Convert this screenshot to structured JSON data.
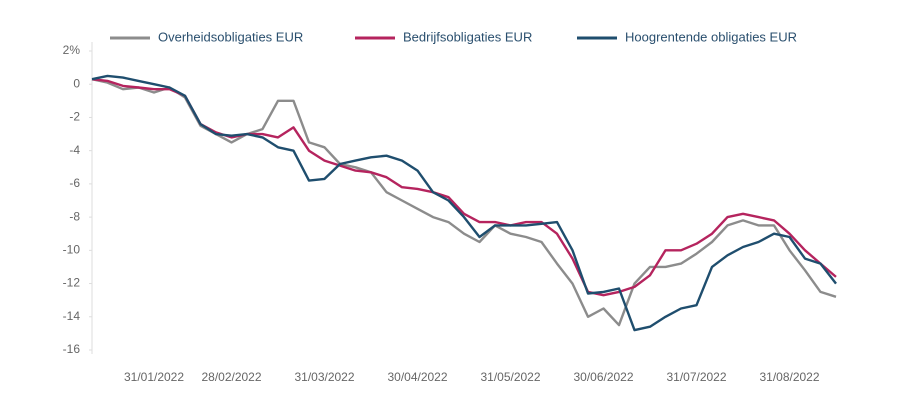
{
  "chart_data": {
    "type": "line",
    "categories": [
      null,
      null,
      null,
      null,
      "31/01/2022",
      null,
      null,
      null,
      null,
      "28/02/2022",
      null,
      null,
      null,
      null,
      null,
      "31/03/2022",
      null,
      null,
      null,
      null,
      null,
      "30/04/2022",
      null,
      null,
      null,
      null,
      null,
      "31/05/2022",
      null,
      null,
      null,
      null,
      null,
      "30/06/2022",
      null,
      null,
      null,
      null,
      null,
      "31/07/2022",
      null,
      null,
      null,
      null,
      null,
      "31/08/2022",
      null,
      null,
      null
    ],
    "series": [
      {
        "name": "Overheidsobligaties EUR",
        "color": "#8c8c8c",
        "values": [
          0.3,
          0.1,
          -0.3,
          -0.2,
          -0.5,
          -0.2,
          -0.8,
          -2.5,
          -3.0,
          -3.5,
          -3.0,
          -2.7,
          -1.0,
          -1.0,
          -3.5,
          -3.8,
          -4.8,
          -5.0,
          -5.3,
          -6.5,
          -7.0,
          -7.5,
          -8.0,
          -8.3,
          -9.0,
          -9.5,
          -8.5,
          -9.0,
          -9.2,
          -9.5,
          -10.8,
          -12.0,
          -14.0,
          -13.5,
          -14.5,
          -12.0,
          -11.0,
          -11.0,
          -10.8,
          -10.2,
          -9.5,
          -8.5,
          -8.2,
          -8.5,
          -8.5,
          -10.0,
          -11.2,
          -12.5,
          -12.8
        ]
      },
      {
        "name": "Bedrijfsobligaties EUR",
        "color": "#b5245e",
        "values": [
          0.3,
          0.2,
          -0.1,
          -0.2,
          -0.3,
          -0.3,
          -0.7,
          -2.4,
          -2.9,
          -3.2,
          -3.0,
          -3.0,
          -3.2,
          -2.6,
          -4.0,
          -4.6,
          -4.9,
          -5.2,
          -5.3,
          -5.6,
          -6.2,
          -6.3,
          -6.5,
          -6.8,
          -7.8,
          -8.3,
          -8.3,
          -8.5,
          -8.3,
          -8.3,
          -9.0,
          -10.5,
          -12.5,
          -12.7,
          -12.5,
          -12.2,
          -11.5,
          -10.0,
          -10.0,
          -9.6,
          -9.0,
          -8.0,
          -7.8,
          -8.0,
          -8.2,
          -9.0,
          -10.0,
          -10.8,
          -11.6
        ]
      },
      {
        "name": "Hoogrentende obligaties EUR",
        "color": "#1f4e6e",
        "values": [
          0.3,
          0.5,
          0.4,
          0.2,
          0.0,
          -0.2,
          -0.7,
          -2.4,
          -3.0,
          -3.1,
          -3.0,
          -3.2,
          -3.8,
          -4.0,
          -5.8,
          -5.7,
          -4.8,
          -4.6,
          -4.4,
          -4.3,
          -4.6,
          -5.2,
          -6.5,
          -7.0,
          -8.0,
          -9.2,
          -8.5,
          -8.5,
          -8.5,
          -8.4,
          -8.3,
          -10.0,
          -12.6,
          -12.5,
          -12.3,
          -14.8,
          -14.6,
          -14.0,
          -13.5,
          -13.3,
          -11.0,
          -10.3,
          -9.8,
          -9.5,
          -9.0,
          -9.2,
          -10.5,
          -10.8,
          -12.0
        ]
      }
    ],
    "ylim": [
      -16,
      2
    ],
    "yticks": [
      {
        "value": 2,
        "label": "2%"
      },
      0,
      -2,
      -4,
      -6,
      -8,
      -10,
      -12,
      -14,
      -16
    ],
    "grid": false,
    "legend": "top"
  }
}
